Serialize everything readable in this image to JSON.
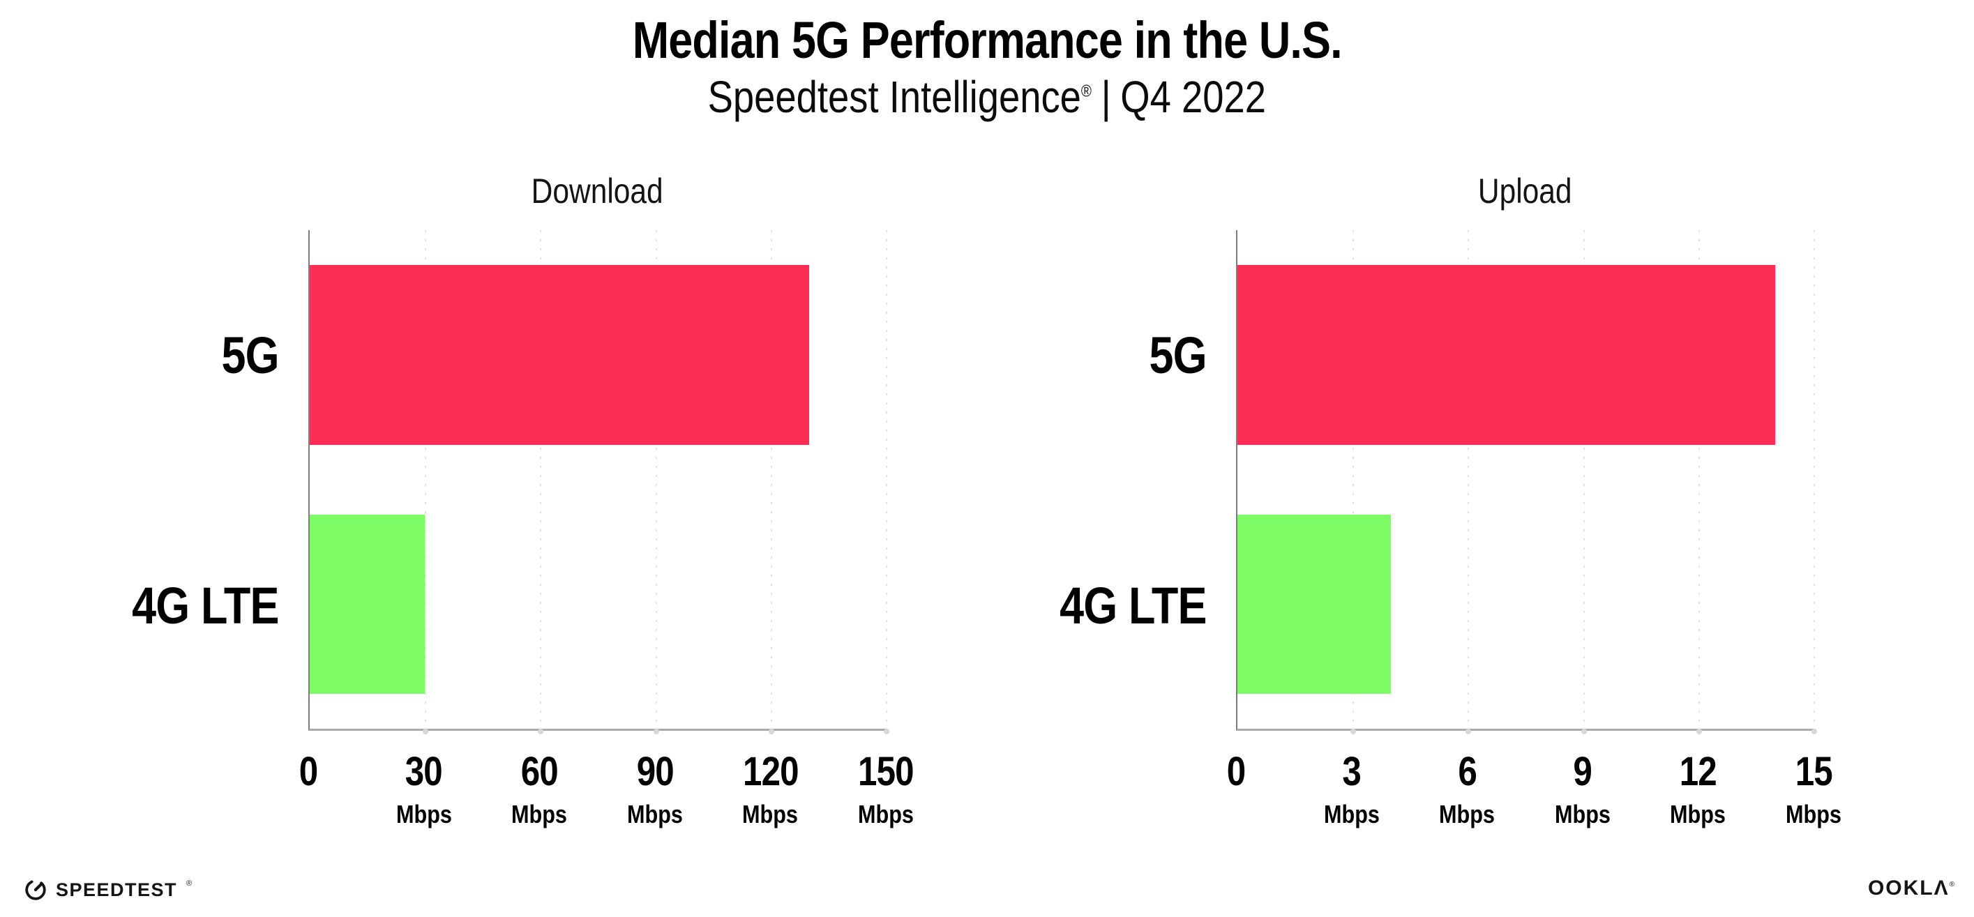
{
  "header": {
    "title": "Median 5G Performance in the U.S.",
    "subtitle_brand": "Speedtest Intelligence",
    "subtitle_reg": "®",
    "subtitle_sep": "|",
    "subtitle_period": "Q4 2022"
  },
  "charts": [
    {
      "title": "Download",
      "axis_max": 150,
      "unit": "Mbps",
      "ticks": [
        {
          "n": "0",
          "u": ""
        },
        {
          "n": "30",
          "u": "Mbps"
        },
        {
          "n": "60",
          "u": "Mbps"
        },
        {
          "n": "90",
          "u": "Mbps"
        },
        {
          "n": "120",
          "u": "Mbps"
        },
        {
          "n": "150",
          "u": "Mbps"
        }
      ],
      "rows": [
        {
          "label": "5G",
          "value": 130,
          "color": "#fe2d56"
        },
        {
          "label": "4G LTE",
          "value": 30,
          "color": "#7efc66"
        }
      ]
    },
    {
      "title": "Upload",
      "axis_max": 15,
      "unit": "Mbps",
      "ticks": [
        {
          "n": "0",
          "u": ""
        },
        {
          "n": "3",
          "u": "Mbps"
        },
        {
          "n": "6",
          "u": "Mbps"
        },
        {
          "n": "9",
          "u": "Mbps"
        },
        {
          "n": "12",
          "u": "Mbps"
        },
        {
          "n": "15",
          "u": "Mbps"
        }
      ],
      "rows": [
        {
          "label": "5G",
          "value": 14,
          "color": "#fe2d56"
        },
        {
          "label": "4G LTE",
          "value": 4,
          "color": "#7efc66"
        }
      ]
    }
  ],
  "footer": {
    "speedtest_label": "SPEEDTEST",
    "speedtest_reg": "®",
    "ookla_label": "OOKLΛ",
    "ookla_reg": "®"
  },
  "colors": {
    "bar_5g": "#fe2d56",
    "bar_4g_lte": "#7efc66",
    "axis_line": "#9b9b9b",
    "gridline": "#e2e2ec",
    "text": "#000000",
    "background": "#ffffff"
  },
  "chart_data": [
    {
      "type": "bar",
      "orientation": "horizontal",
      "title": "Download",
      "categories": [
        "5G",
        "4G LTE"
      ],
      "values": [
        130,
        30
      ],
      "unit": "Mbps",
      "xlabel": "Mbps",
      "xlim": [
        0,
        150
      ],
      "xticks": [
        0,
        30,
        60,
        90,
        120,
        150
      ],
      "colors": [
        "#fe2d56",
        "#7efc66"
      ],
      "grid": "vertical dotted",
      "legend": "none"
    },
    {
      "type": "bar",
      "orientation": "horizontal",
      "title": "Upload",
      "categories": [
        "5G",
        "4G LTE"
      ],
      "values": [
        14,
        4
      ],
      "unit": "Mbps",
      "xlabel": "Mbps",
      "xlim": [
        0,
        15
      ],
      "xticks": [
        0,
        3,
        6,
        9,
        12,
        15
      ],
      "colors": [
        "#fe2d56",
        "#7efc66"
      ],
      "grid": "vertical dotted",
      "legend": "none"
    }
  ]
}
